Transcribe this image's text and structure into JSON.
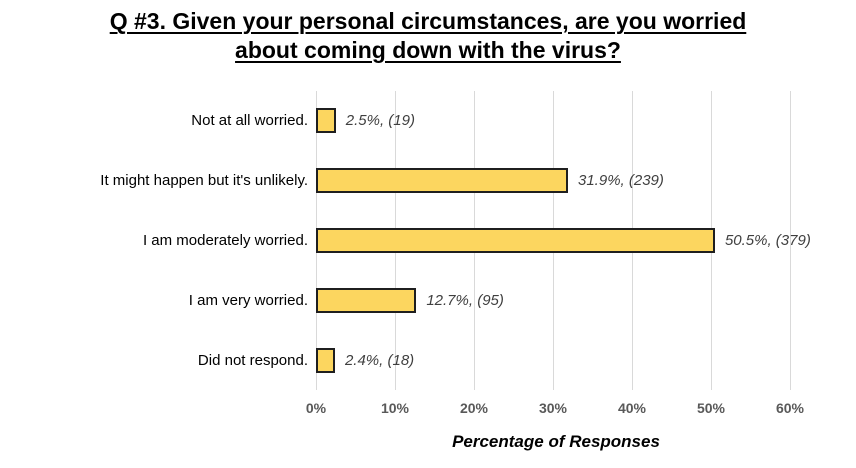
{
  "title": {
    "line1": "Q #3. Given your personal circumstances, are you worried",
    "line2": "about coming down with the virus?"
  },
  "chart_data": {
    "type": "bar",
    "orientation": "horizontal",
    "title": "Q #3. Given your personal circumstances, are you worried about coming down with the virus?",
    "xlabel": "Percentage of Responses",
    "ylabel": "",
    "xlim": [
      0,
      60
    ],
    "grid": "vertical major gridlines every 10%",
    "legend": "none",
    "categories": [
      "Not at all worried.",
      "It might happen but it's unlikely.",
      "I am moderately worried.",
      "I am very worried.",
      "Did not respond."
    ],
    "values": [
      2.5,
      31.9,
      50.5,
      12.7,
      2.4
    ],
    "counts": [
      19,
      239,
      379,
      95,
      18
    ],
    "value_labels": [
      "2.5%, (19)",
      "31.9%, (239)",
      "50.5%, (379)",
      "12.7%, (95)",
      "2.4%, (18)"
    ],
    "x_ticks": [
      "0%",
      "10%",
      "20%",
      "30%",
      "40%",
      "50%",
      "60%"
    ],
    "colors": {
      "bar_fill": "#FCD65F",
      "bar_border": "#1F1F1F",
      "gridline": "#D9D9D9",
      "tick_text": "#595959",
      "value_text": "#3F3F3F",
      "title_text": "#000000"
    }
  }
}
